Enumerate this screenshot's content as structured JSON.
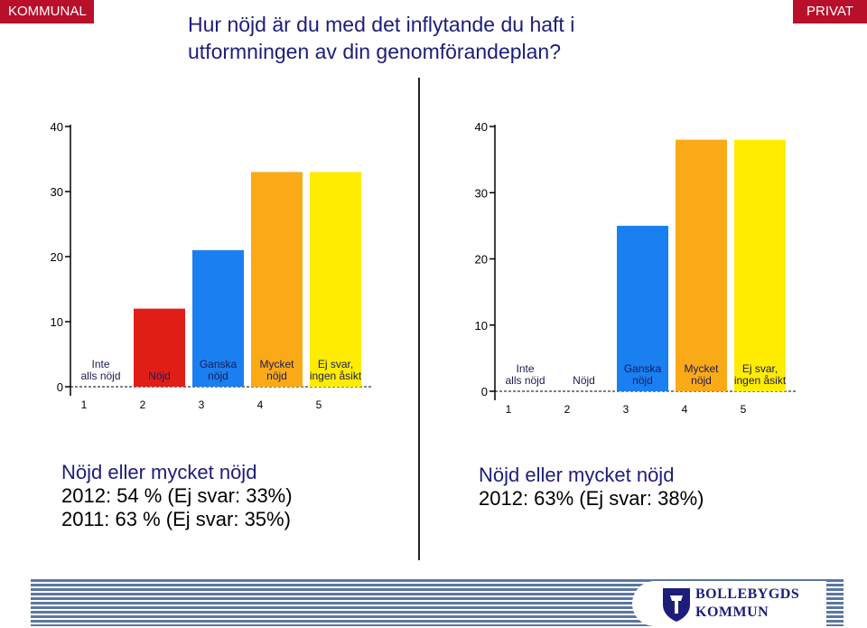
{
  "tags": {
    "left": "KOMMUNAL",
    "right": "PRIVAT"
  },
  "title": {
    "line1": "Hur nöjd är du med det inflytande du haft i",
    "line2": "utformningen av din genomförandeplan?"
  },
  "chart_data": [
    {
      "type": "bar",
      "categories": [
        "Inte alls nöjd",
        "Nöjd",
        "Ganska nöjd",
        "Mycket nöjd",
        "Ej svar, ingen åsikt"
      ],
      "x_ticks": [
        "1",
        "2",
        "3",
        "4",
        "5"
      ],
      "values": [
        0,
        12,
        21,
        33,
        33
      ],
      "colors": [
        "#ffffff",
        "#e11e16",
        "#1a7ff0",
        "#fbaa17",
        "#ffec00"
      ],
      "ylim": [
        0,
        40
      ],
      "y_ticks": [
        "0",
        "10",
        "20",
        "30",
        "40"
      ],
      "title": "",
      "xlabel": "",
      "ylabel": ""
    },
    {
      "type": "bar",
      "categories": [
        "Inte alls nöjd",
        "Nöjd",
        "Ganska nöjd",
        "Mycket nöjd",
        "Ej svar, ingen åsikt"
      ],
      "x_ticks": [
        "1",
        "2",
        "3",
        "4",
        "5"
      ],
      "values": [
        0,
        0,
        25,
        38,
        38
      ],
      "colors": [
        "#ffffff",
        "#e11e16",
        "#1a7ff0",
        "#fbaa17",
        "#ffec00"
      ],
      "ylim": [
        0,
        40
      ],
      "y_ticks": [
        "0",
        "10",
        "20",
        "30",
        "40"
      ],
      "title": "",
      "xlabel": "",
      "ylabel": ""
    }
  ],
  "summary_left": {
    "head": "Nöjd eller mycket nöjd",
    "line1": "2012: 54 % (Ej svar: 33%)",
    "line2": "2011: 63 % (Ej svar: 35%)"
  },
  "summary_right": {
    "head": "Nöjd eller mycket nöjd",
    "line1": "2012: 63% (Ej svar: 38%)"
  },
  "logo": {
    "line1": "BOLLEBYGDS",
    "line2": "KOMMUN"
  }
}
